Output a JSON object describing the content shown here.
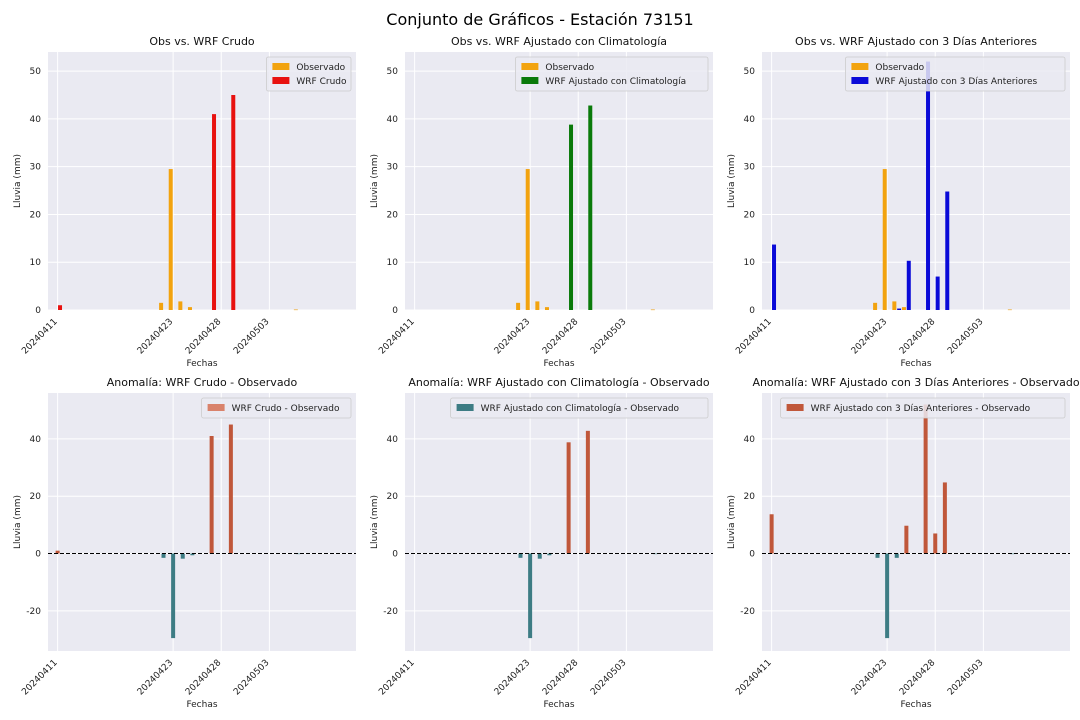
{
  "figure": {
    "title": "Conjunto de Gráficos - Estación 73151"
  },
  "chart_data": [
    {
      "type": "bar",
      "title": "Obs vs. WRF Crudo",
      "xlabel": "Fechas",
      "ylabel": "Lluvia (mm)",
      "ylim": [
        0,
        54
      ],
      "yticks": [
        0,
        10,
        20,
        30,
        40,
        50
      ],
      "xticks": [
        "20240411",
        "20240423",
        "20240428",
        "20240503"
      ],
      "dates": [
        "20240411",
        "20240421",
        "20240422",
        "20240423",
        "20240424",
        "20240425",
        "20240426",
        "20240427",
        "20240428",
        "20240429",
        "20240430",
        "20240501",
        "20240502",
        "20240503",
        "20240504",
        "20240505",
        "20240506"
      ],
      "legend": "top-right",
      "grid": true,
      "series": [
        {
          "name": "Observado",
          "color": "#f2a30f",
          "values": [
            0,
            0,
            1.5,
            29.5,
            1.8,
            0.6,
            0,
            0,
            0,
            0,
            0,
            0,
            0,
            0,
            0,
            0,
            0.1
          ]
        },
        {
          "name": "WRF Crudo",
          "color": "#e8110f",
          "values": [
            1,
            0,
            0,
            0,
            0,
            0,
            0,
            41,
            0,
            45,
            0,
            0,
            0,
            0,
            0,
            0,
            0
          ]
        }
      ]
    },
    {
      "type": "bar",
      "title": "Obs vs. WRF Ajustado con Climatología",
      "xlabel": "Fechas",
      "ylabel": "Lluvia (mm)",
      "ylim": [
        0,
        54
      ],
      "yticks": [
        0,
        10,
        20,
        30,
        40,
        50
      ],
      "xticks": [
        "20240411",
        "20240423",
        "20240428",
        "20240503"
      ],
      "dates": [
        "20240411",
        "20240421",
        "20240422",
        "20240423",
        "20240424",
        "20240425",
        "20240426",
        "20240427",
        "20240428",
        "20240429",
        "20240430",
        "20240501",
        "20240502",
        "20240503",
        "20240504",
        "20240505",
        "20240506"
      ],
      "legend": "top-right",
      "grid": true,
      "series": [
        {
          "name": "Observado",
          "color": "#f2a30f",
          "values": [
            0,
            0,
            1.5,
            29.5,
            1.8,
            0.6,
            0,
            0,
            0,
            0,
            0,
            0,
            0,
            0,
            0,
            0,
            0.1
          ]
        },
        {
          "name": "WRF Ajustado con Climatología",
          "color": "#0a7a0a",
          "values": [
            0,
            0,
            0,
            0,
            0,
            0,
            0,
            38.8,
            0,
            42.8,
            0,
            0,
            0,
            0,
            0,
            0,
            0
          ]
        }
      ]
    },
    {
      "type": "bar",
      "title": "Obs vs. WRF Ajustado con 3 Días Anteriores",
      "xlabel": "Fechas",
      "ylabel": "Lluvia (mm)",
      "ylim": [
        0,
        54
      ],
      "yticks": [
        0,
        10,
        20,
        30,
        40,
        50
      ],
      "xticks": [
        "20240411",
        "20240423",
        "20240428",
        "20240503"
      ],
      "dates": [
        "20240411",
        "20240421",
        "20240422",
        "20240423",
        "20240424",
        "20240425",
        "20240426",
        "20240427",
        "20240428",
        "20240429",
        "20240430",
        "20240501",
        "20240502",
        "20240503",
        "20240504",
        "20240505",
        "20240506"
      ],
      "legend": "top-right",
      "grid": true,
      "series": [
        {
          "name": "Observado",
          "color": "#f2a30f",
          "values": [
            0,
            0,
            1.5,
            29.5,
            1.8,
            0.6,
            0,
            0,
            0,
            0,
            0,
            0,
            0,
            0,
            0,
            0,
            0.1
          ]
        },
        {
          "name": "WRF Ajustado con 3 Días Anteriores",
          "color": "#0a0ad8",
          "values": [
            13.7,
            0,
            0,
            0,
            0.3,
            10.3,
            0,
            52,
            7,
            24.8,
            0,
            0,
            0,
            0,
            0,
            0,
            0
          ]
        }
      ]
    },
    {
      "type": "bar",
      "title": "Anomalía: WRF Crudo - Observado",
      "xlabel": "Fechas",
      "ylabel": "Lluvia (mm)",
      "ylim": [
        -34,
        56
      ],
      "yticks": [
        -20,
        0,
        20,
        40
      ],
      "xticks": [
        "20240411",
        "20240423",
        "20240428",
        "20240503"
      ],
      "dates": [
        "20240411",
        "20240421",
        "20240422",
        "20240423",
        "20240424",
        "20240425",
        "20240426",
        "20240427",
        "20240428",
        "20240429",
        "20240430",
        "20240501",
        "20240502",
        "20240503",
        "20240504",
        "20240505",
        "20240506"
      ],
      "legend": "top-right",
      "grid": true,
      "positive_color": "#c0573a",
      "negative_color": "#3d7c84",
      "series": [
        {
          "name": "WRF Crudo - Observado",
          "color": "#d9826b",
          "values": [
            1,
            0,
            -1.5,
            -29.5,
            -1.8,
            -0.6,
            0,
            41,
            0,
            45,
            0,
            0,
            0,
            0,
            0,
            0,
            -0.1
          ]
        }
      ]
    },
    {
      "type": "bar",
      "title": "Anomalía: WRF Ajustado con Climatología - Observado",
      "xlabel": "Fechas",
      "ylabel": "Lluvia (mm)",
      "ylim": [
        -34,
        56
      ],
      "yticks": [
        -20,
        0,
        20,
        40
      ],
      "xticks": [
        "20240411",
        "20240423",
        "20240428",
        "20240503"
      ],
      "dates": [
        "20240411",
        "20240421",
        "20240422",
        "20240423",
        "20240424",
        "20240425",
        "20240426",
        "20240427",
        "20240428",
        "20240429",
        "20240430",
        "20240501",
        "20240502",
        "20240503",
        "20240504",
        "20240505",
        "20240506"
      ],
      "legend": "top-right",
      "grid": true,
      "positive_color": "#c0573a",
      "negative_color": "#3d7c84",
      "series": [
        {
          "name": "WRF Ajustado con Climatología - Observado",
          "color": "#3d7c84",
          "values": [
            0,
            0,
            -1.5,
            -29.5,
            -1.8,
            -0.6,
            0,
            38.8,
            0,
            42.8,
            0,
            0,
            0,
            0,
            0,
            0,
            -0.1
          ]
        }
      ]
    },
    {
      "type": "bar",
      "title": "Anomalía: WRF Ajustado con 3 Días Anteriores - Observado",
      "xlabel": "Fechas",
      "ylabel": "Lluvia (mm)",
      "ylim": [
        -34,
        56
      ],
      "yticks": [
        -20,
        0,
        20,
        40
      ],
      "xticks": [
        "20240411",
        "20240423",
        "20240428",
        "20240503"
      ],
      "dates": [
        "20240411",
        "20240421",
        "20240422",
        "20240423",
        "20240424",
        "20240425",
        "20240426",
        "20240427",
        "20240428",
        "20240429",
        "20240430",
        "20240501",
        "20240502",
        "20240503",
        "20240504",
        "20240505",
        "20240506"
      ],
      "legend": "top-right",
      "grid": true,
      "positive_color": "#c0573a",
      "negative_color": "#3d7c84",
      "series": [
        {
          "name": "WRF Ajustado con 3 Días Anteriores - Observado",
          "color": "#c0573a",
          "values": [
            13.7,
            0,
            -1.5,
            -29.5,
            -1.5,
            9.7,
            0,
            52,
            7,
            24.8,
            0,
            0,
            0,
            0,
            0,
            0,
            -0.1
          ]
        }
      ]
    }
  ]
}
